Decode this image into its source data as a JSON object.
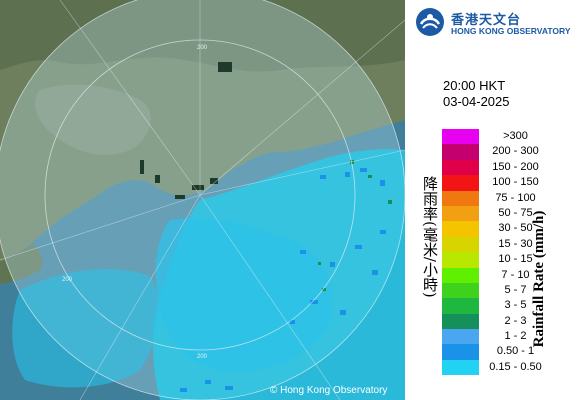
{
  "logo": {
    "name_cn": "香港天文台",
    "name_en": "HONG KONG OBSERVATORY"
  },
  "timestamp": {
    "time": "20:00 HKT",
    "date": "03-04-2025"
  },
  "map": {
    "range_ring_labels": [
      "200",
      "200",
      "200"
    ],
    "copyright": "© Hong Kong Observatory"
  },
  "legend": {
    "title_cn": "降雨率(毫米/小時)",
    "title_en": "Rainfall Rate (mm/h)",
    "items": [
      {
        "label": ">300",
        "color": "#e800f0"
      },
      {
        "label": "200 - 300",
        "color": "#c4006e"
      },
      {
        "label": "150 - 200",
        "color": "#e0004a"
      },
      {
        "label": "100 - 150",
        "color": "#f31515"
      },
      {
        "label": "75 - 100",
        "color": "#f07810"
      },
      {
        "label": "50 - 75",
        "color": "#f0a010"
      },
      {
        "label": "30 - 50",
        "color": "#f4c400"
      },
      {
        "label": "15 - 30",
        "color": "#d8d400"
      },
      {
        "label": "10 - 15",
        "color": "#b8e800"
      },
      {
        "label": "7 - 10",
        "color": "#5ef000"
      },
      {
        "label": "5 - 7",
        "color": "#3ed21c"
      },
      {
        "label": "3 - 5",
        "color": "#1eb840"
      },
      {
        "label": "2 - 3",
        "color": "#16905a"
      },
      {
        "label": "1 - 2",
        "color": "#4aa6f0"
      },
      {
        "label": "0.50 - 1",
        "color": "#1a92e8"
      },
      {
        "label": "0.15 - 0.50",
        "color": "#22d2f2"
      }
    ]
  }
}
